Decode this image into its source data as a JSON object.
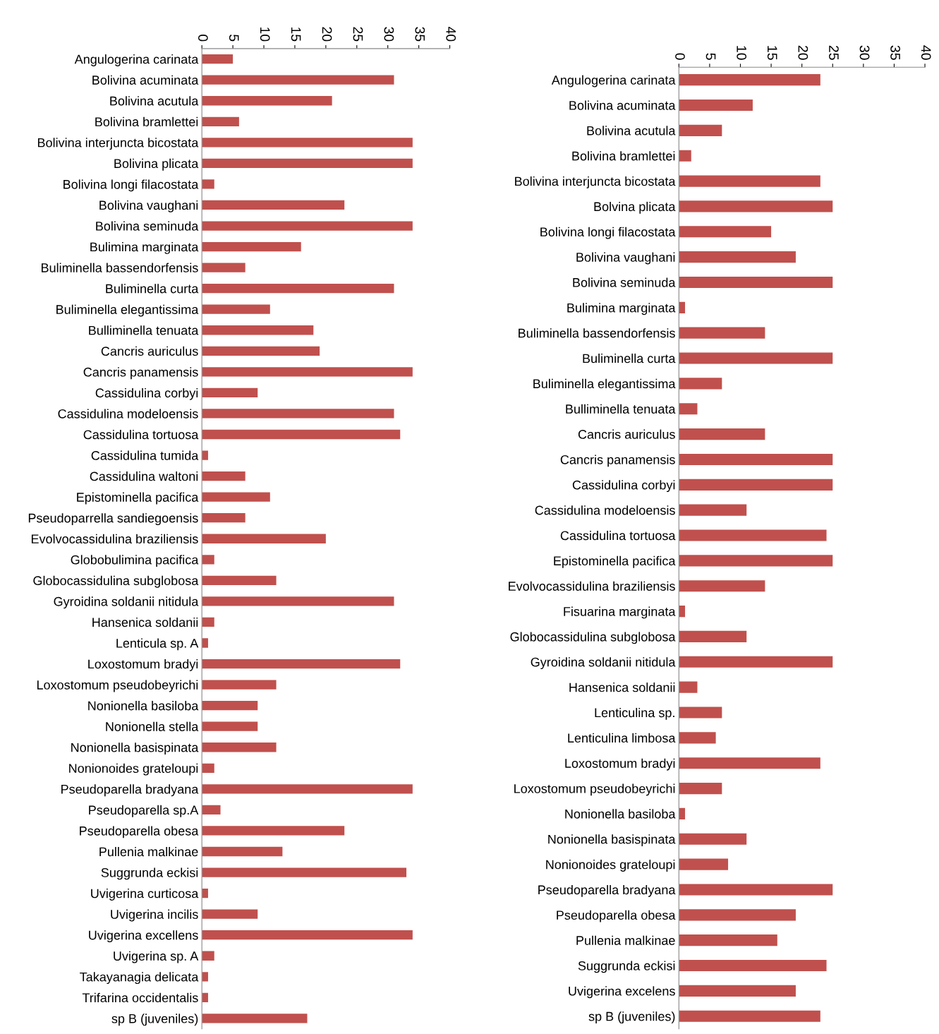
{
  "chart_data": [
    {
      "type": "bar",
      "orientation": "horizontal",
      "color": "#c0504d",
      "xlim": [
        0,
        40
      ],
      "xticks": [
        0,
        5,
        10,
        15,
        20,
        25,
        30,
        35,
        40
      ],
      "grid": false,
      "legend": false,
      "categories": [
        "Angulogerina carinata",
        "Bolivina acuminata",
        "Bolivina acutula",
        "Bolivina bramlettei",
        "Bolivina interjuncta bicostata",
        "Bolivina plicata",
        "Bolivina longi filacostata",
        "Bolivina vaughani",
        "Bolivina seminuda",
        "Bulimina marginata",
        "Buliminella bassendorfensis",
        "Buliminella curta",
        "Buliminella elegantissima",
        "Bulliminella tenuata",
        "Cancris auriculus",
        "Cancris panamensis",
        "Cassidulina corbyi",
        "Cassidulina modeloensis",
        "Cassidulina tortuosa",
        "Cassidulina tumida",
        "Cassidulina waltoni",
        "Epistominella pacifica",
        "Pseudoparrella sandiegoensis",
        "Evolvocassidulina braziliensis",
        "Globobulimina pacifica",
        "Globocassidulina subglobosa",
        "Gyroidina soldanii nitidula",
        "Hansenica soldanii",
        "Lenticula sp. A",
        "Loxostomum bradyi",
        "Loxostomum pseudobeyrichi",
        "Nonionella basiloba",
        "Nonionella stella",
        "Nonionella basispinata",
        "Nonionoides grateloupi",
        "Pseudoparella bradyana",
        "Pseudoparella sp.A",
        "Pseudoparella obesa",
        "Pullenia malkinae",
        "Suggrunda eckisi",
        "Uvigerina curticosa",
        "Uvigerina incilis",
        "Uvigerina excellens",
        "Uvigerina sp. A",
        "Takayanagia delicata",
        "Trifarina occidentalis",
        "sp B (juveniles)"
      ],
      "values": [
        5,
        31,
        21,
        6,
        34,
        34,
        2,
        23,
        34,
        16,
        7,
        31,
        11,
        18,
        19,
        34,
        9,
        31,
        32,
        1,
        7,
        11,
        7,
        20,
        2,
        12,
        31,
        2,
        1,
        32,
        12,
        9,
        9,
        12,
        2,
        34,
        3,
        23,
        13,
        33,
        1,
        9,
        34,
        2,
        1,
        1,
        17
      ]
    },
    {
      "type": "bar",
      "orientation": "horizontal",
      "color": "#c0504d",
      "xlim": [
        0,
        40
      ],
      "xticks": [
        0,
        5,
        10,
        15,
        20,
        25,
        30,
        35,
        40
      ],
      "grid": false,
      "legend": false,
      "categories": [
        "Angulogerina carinata",
        "Bolivina acuminata",
        "Bolivina acutula",
        "Bolivina bramlettei",
        "Bolivina interjuncta bicostata",
        "Bolvina plicata",
        "Bolivina longi filacostata",
        "Bolivina vaughani",
        "Bolivina seminuda",
        "Bulimina marginata",
        "Buliminella bassendorfensis",
        "Buliminella curta",
        "Buliminella elegantissima",
        "Bulliminella tenuata",
        "Cancris auriculus",
        "Cancris panamensis",
        "Cassidulina corbyi",
        "Cassidulina modeloensis",
        "Cassidulina tortuosa",
        "Epistominella pacifica",
        "Evolvocassidulina braziliensis",
        "Fisuarina marginata",
        "Globocassidulina subglobosa",
        "Gyroidina soldanii nitidula",
        "Hansenica soldanii",
        "Lenticulina sp.",
        "Lenticulina limbosa",
        "Loxostomum bradyi",
        "Loxostomum pseudobeyrichi",
        "Nonionella basiloba",
        "Nonionella basispinata",
        "Nonionoides grateloupi",
        "Pseudoparella bradyana",
        "Pseudoparella obesa",
        "Pullenia malkinae",
        "Suggrunda eckisi",
        "Uvigerina excelens",
        "sp B (juveniles)"
      ],
      "values": [
        23,
        12,
        7,
        2,
        23,
        25,
        15,
        19,
        25,
        1,
        14,
        25,
        7,
        3,
        14,
        25,
        25,
        11,
        24,
        25,
        14,
        1,
        11,
        25,
        3,
        7,
        6,
        23,
        7,
        1,
        11,
        8,
        25,
        19,
        16,
        24,
        19,
        23
      ]
    }
  ]
}
